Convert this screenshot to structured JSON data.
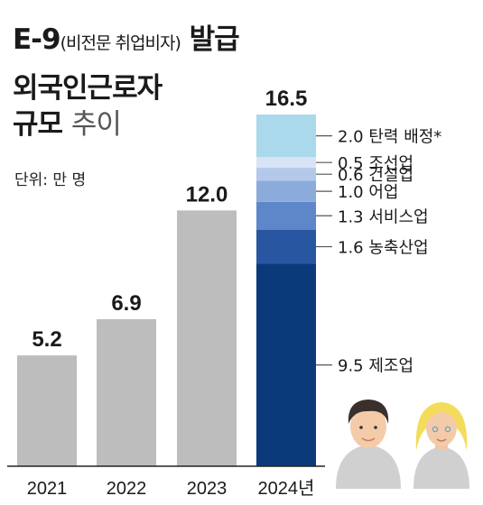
{
  "title": {
    "code": "E-9",
    "paren": "(비전문 취업비자)",
    "line1_tail": "발급",
    "line2": "외국인근로자",
    "line3_bold": "규모",
    "line3_light": "추이"
  },
  "unit_label": "단위: 만 명",
  "chart_data": {
    "type": "bar",
    "categories": [
      "2021",
      "2022",
      "2023",
      "2024년"
    ],
    "values": [
      5.2,
      6.9,
      12.0,
      16.5
    ],
    "value_labels": [
      "5.2",
      "6.9",
      "12.0",
      "16.5"
    ],
    "stacked_breakdown": {
      "category": "2024년",
      "segments": [
        {
          "label": "9.5 제조업",
          "value": 9.5,
          "color": "#0b3a7b"
        },
        {
          "label": "1.6 농축산업",
          "value": 1.6,
          "color": "#2956a0"
        },
        {
          "label": "1.3 서비스업",
          "value": 1.3,
          "color": "#5d87c9"
        },
        {
          "label": "1.0 어업",
          "value": 1.0,
          "color": "#8bacdb"
        },
        {
          "label": "0.6 건설업",
          "value": 0.6,
          "color": "#b4c8ea"
        },
        {
          "label": "0.5 조선업",
          "value": 0.5,
          "color": "#d8e3f5"
        },
        {
          "label": "2.0 탄력 배정*",
          "value": 2.0,
          "color": "#a9d9eb"
        }
      ]
    },
    "bar_color": "#bdbdbd",
    "ylim": [
      0,
      16.5
    ]
  },
  "decorations": {
    "icons": [
      "man-avatar-icon",
      "woman-avatar-icon"
    ]
  }
}
